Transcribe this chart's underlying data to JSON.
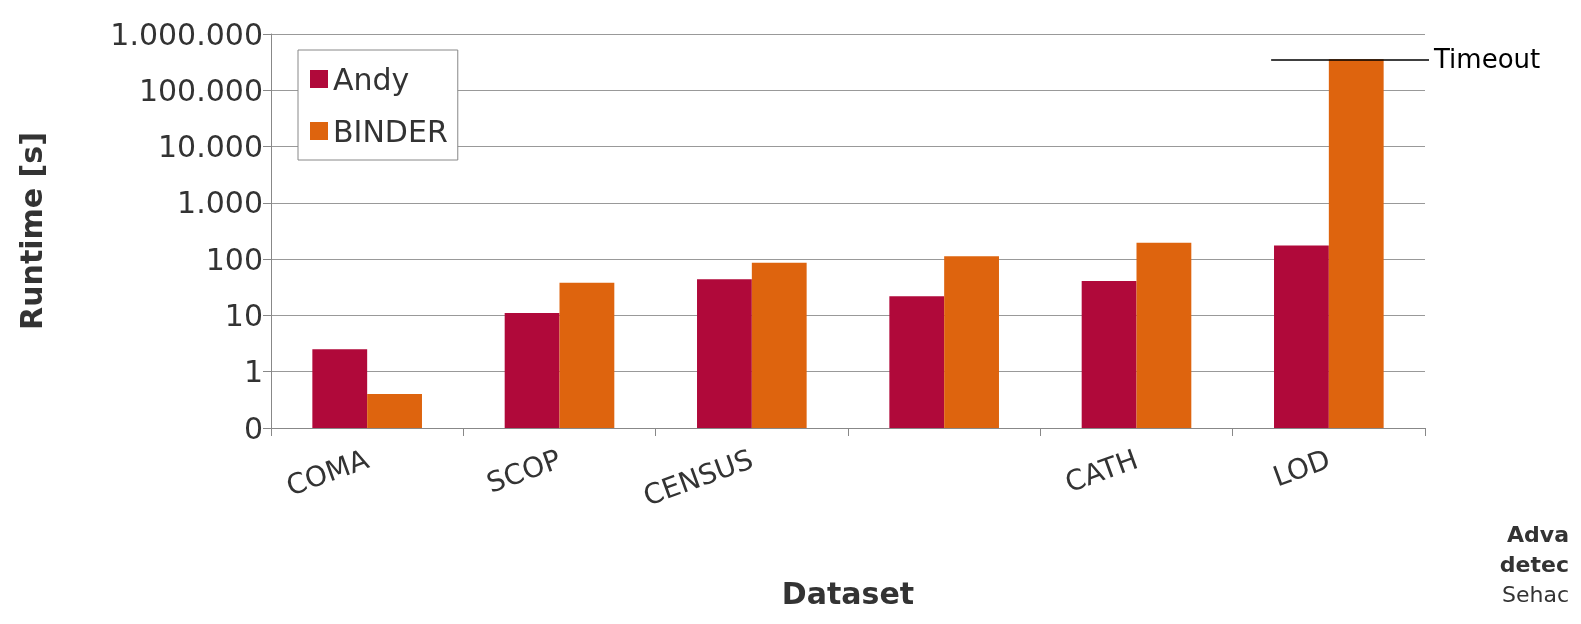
{
  "chart_data": {
    "type": "bar",
    "xlabel": "Dataset",
    "ylabel": "Runtime [s]",
    "categories": [
      "COMA",
      "SCOP",
      "CENSUS",
      null,
      "CATH",
      "LOD"
    ],
    "series": [
      {
        "name": "Andy",
        "color": "#b0093a",
        "values": [
          2.5,
          11,
          44,
          22,
          41,
          174
        ]
      },
      {
        "name": "BINDER",
        "color": "#de640e",
        "values": [
          0.4,
          38,
          86,
          113,
          196,
          355000
        ]
      }
    ],
    "log": "y",
    "ylim": [
      0.1,
      1000000
    ],
    "yticks": [
      {
        "value": 0.1,
        "label": "0"
      },
      1,
      10,
      100,
      {
        "value": 1000,
        "label": "1.000"
      },
      {
        "value": 10000,
        "label": "10.000"
      },
      {
        "value": 100000,
        "label": "100.000"
      },
      {
        "value": 1000000,
        "label": "1.000.000"
      }
    ],
    "grid": "y",
    "legend": "top left",
    "ref_lines": [
      {
        "axis": "y",
        "value": 355000,
        "label": "Timeout",
        "color": "#000000"
      }
    ],
    "annotations": [
      "Adva",
      "detec",
      "Sehac"
    ]
  }
}
